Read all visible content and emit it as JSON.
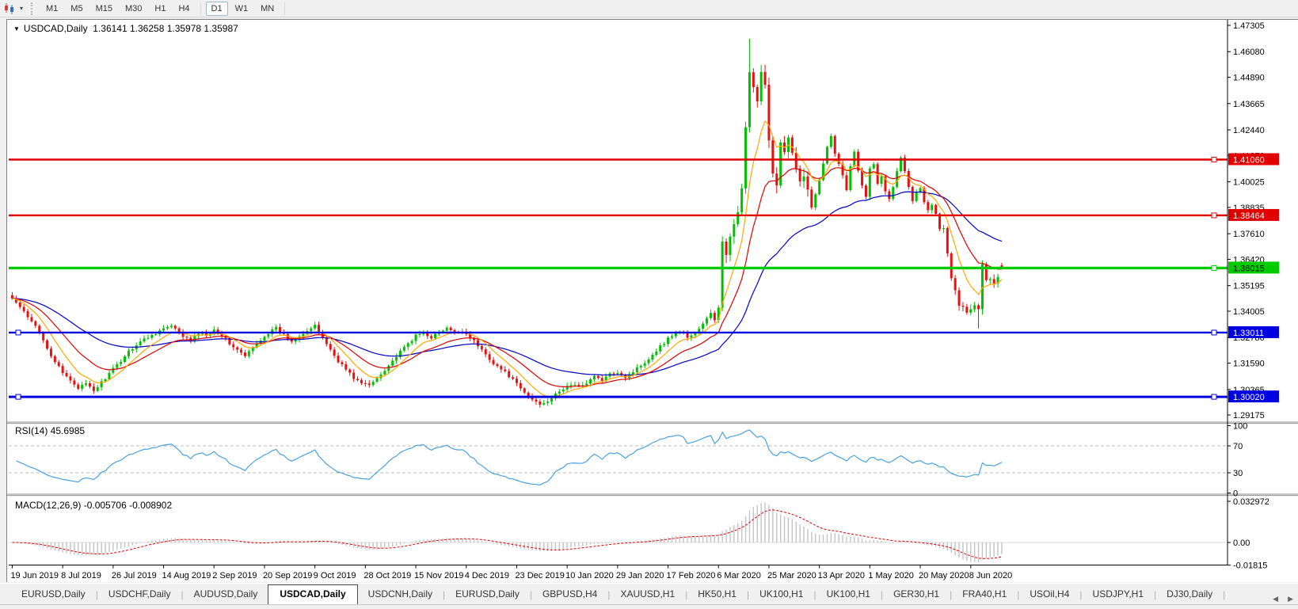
{
  "toolbar": {
    "icon": "candlestick-chart-icon",
    "timeframes": [
      "M1",
      "M5",
      "M15",
      "M30",
      "H1",
      "H4",
      "D1",
      "W1",
      "MN"
    ],
    "active_timeframe": "D1"
  },
  "chart": {
    "title": "USDCAD,Daily",
    "ohlc_display": "1.36141 1.36258 1.35978 1.35987",
    "price_axis": {
      "ticks": [
        "1.47305",
        "1.46080",
        "1.44890",
        "1.43665",
        "1.42440",
        "1.41250",
        "1.40025",
        "1.38835",
        "1.37610",
        "1.36420",
        "1.35195",
        "1.34005",
        "1.32780",
        "1.31590",
        "1.30365",
        "1.29175"
      ]
    },
    "levels": [
      {
        "price": 1.4106,
        "label": "1.41060",
        "color": "#E00000",
        "text_color": "#FFFFFF",
        "width": 2.4,
        "handles": [
          "right"
        ]
      },
      {
        "price": 1.38464,
        "label": "1.38464",
        "color": "#E00000",
        "text_color": "#FFFFFF",
        "width": 2.4,
        "handles": [
          "right"
        ]
      },
      {
        "price": 1.36015,
        "label": "1.36015",
        "color": "#00CC00",
        "text_color": "#000000",
        "width": 3.4,
        "handles": [
          "right"
        ]
      },
      {
        "price": 1.33011,
        "label": "1.33011",
        "color": "#0000E0",
        "text_color": "#FFFFFF",
        "width": 2.4,
        "handles": [
          "left",
          "right"
        ]
      },
      {
        "price": 1.3002,
        "label": "1.30020",
        "color": "#0000E0",
        "text_color": "#FFFFFF",
        "width": 3.0,
        "handles": [
          "left",
          "right"
        ]
      }
    ],
    "rsi": {
      "display": "RSI(14) 45.6985",
      "axis": [
        {
          "label": "100",
          "value": 100
        },
        {
          "label": "70",
          "value": 70
        },
        {
          "label": "30",
          "value": 30
        },
        {
          "label": "0",
          "value": 0
        }
      ],
      "dashed_levels": [
        70,
        30
      ]
    },
    "macd": {
      "display": "MACD(12,26,9) -0.005706 -0.008902",
      "axis": [
        {
          "label": "0.032972",
          "value": 0.032972
        },
        {
          "label": "0.00",
          "value": 0
        },
        {
          "label": "-0.01815",
          "value": -0.01815
        }
      ]
    },
    "date_axis": [
      "19 Jun 2019",
      "8 Jul 2019",
      "26 Jul 2019",
      "14 Aug 2019",
      "2 Sep 2019",
      "20 Sep 2019",
      "9 Oct 2019",
      "28 Oct 2019",
      "15 Nov 2019",
      "4 Dec 2019",
      "23 Dec 2019",
      "10 Jan 2020",
      "29 Jan 2020",
      "17 Feb 2020",
      "6 Mar 2020",
      "25 Mar 2020",
      "13 Apr 2020",
      "1 May 2020",
      "20 May 2020",
      "8 Jun 2020"
    ]
  },
  "chart_data": {
    "type": "candlestick",
    "symbol": "USDCAD",
    "timeframe": "Daily",
    "n_bars": 256,
    "last_bar": {
      "open": 1.36141,
      "high": 1.36258,
      "low": 1.35978,
      "close": 1.35987
    },
    "price_range_shown": [
      1.29175,
      1.47305
    ],
    "close_anchors": [
      [
        0,
        1.346
      ],
      [
        2,
        1.342
      ],
      [
        4,
        1.337
      ],
      [
        6,
        1.333
      ],
      [
        8,
        1.327
      ],
      [
        10,
        1.3195
      ],
      [
        13,
        1.311
      ],
      [
        15,
        1.308
      ],
      [
        17,
        1.3045
      ],
      [
        19,
        1.306
      ],
      [
        21,
        1.303
      ],
      [
        23,
        1.307
      ],
      [
        26,
        1.313
      ],
      [
        28,
        1.317
      ],
      [
        30,
        1.3215
      ],
      [
        33,
        1.326
      ],
      [
        36,
        1.329
      ],
      [
        39,
        1.332
      ],
      [
        41,
        1.333
      ],
      [
        44,
        1.3285
      ],
      [
        46,
        1.326
      ],
      [
        48,
        1.33
      ],
      [
        50,
        1.329
      ],
      [
        52,
        1.3315
      ],
      [
        54,
        1.329
      ],
      [
        56,
        1.325
      ],
      [
        58,
        1.322
      ],
      [
        60,
        1.319
      ],
      [
        62,
        1.323
      ],
      [
        64,
        1.327
      ],
      [
        66,
        1.33
      ],
      [
        68,
        1.332
      ],
      [
        70,
        1.329
      ],
      [
        72,
        1.326
      ],
      [
        74,
        1.329
      ],
      [
        76,
        1.331
      ],
      [
        78,
        1.333
      ],
      [
        80,
        1.328
      ],
      [
        82,
        1.322
      ],
      [
        84,
        1.317
      ],
      [
        86,
        1.313
      ],
      [
        88,
        1.309
      ],
      [
        90,
        1.3065
      ],
      [
        92,
        1.3055
      ],
      [
        94,
        1.309
      ],
      [
        96,
        1.313
      ],
      [
        98,
        1.317
      ],
      [
        100,
        1.321
      ],
      [
        102,
        1.325
      ],
      [
        104,
        1.3285
      ],
      [
        106,
        1.33
      ],
      [
        108,
        1.328
      ],
      [
        110,
        1.33
      ],
      [
        112,
        1.332
      ],
      [
        114,
        1.33
      ],
      [
        116,
        1.331
      ],
      [
        118,
        1.328
      ],
      [
        120,
        1.324
      ],
      [
        122,
        1.32
      ],
      [
        124,
        1.316
      ],
      [
        126,
        1.313
      ],
      [
        128,
        1.31
      ],
      [
        130,
        1.306
      ],
      [
        132,
        1.302
      ],
      [
        134,
        1.299
      ],
      [
        136,
        1.297
      ],
      [
        138,
        1.2985
      ],
      [
        140,
        1.301
      ],
      [
        142,
        1.304
      ],
      [
        144,
        1.306
      ],
      [
        146,
        1.305
      ],
      [
        148,
        1.307
      ],
      [
        150,
        1.3095
      ],
      [
        152,
        1.308
      ],
      [
        154,
        1.3105
      ],
      [
        156,
        1.312
      ],
      [
        158,
        1.3095
      ],
      [
        160,
        1.312
      ],
      [
        162,
        1.315
      ],
      [
        164,
        1.318
      ],
      [
        166,
        1.322
      ],
      [
        168,
        1.3255
      ],
      [
        170,
        1.329
      ],
      [
        172,
        1.331
      ],
      [
        174,
        1.328
      ],
      [
        176,
        1.33
      ],
      [
        178,
        1.334
      ],
      [
        180,
        1.339
      ],
      [
        181,
        1.336
      ],
      [
        182,
        1.342
      ],
      [
        183,
        1.372
      ],
      [
        184,
        1.365
      ],
      [
        185,
        1.373
      ],
      [
        186,
        1.381
      ],
      [
        187,
        1.388
      ],
      [
        188,
        1.399
      ],
      [
        189,
        1.424
      ],
      [
        190,
        1.451
      ],
      [
        191,
        1.444
      ],
      [
        192,
        1.436
      ],
      [
        193,
        1.45
      ],
      [
        194,
        1.444
      ],
      [
        195,
        1.418
      ],
      [
        196,
        1.406
      ],
      [
        197,
        1.399
      ],
      [
        198,
        1.419
      ],
      [
        199,
        1.416
      ],
      [
        200,
        1.421
      ],
      [
        201,
        1.413
      ],
      [
        202,
        1.406
      ],
      [
        203,
        1.399
      ],
      [
        204,
        1.402
      ],
      [
        205,
        1.396
      ],
      [
        206,
        1.389
      ],
      [
        207,
        1.394
      ],
      [
        208,
        1.401
      ],
      [
        209,
        1.409
      ],
      [
        210,
        1.417
      ],
      [
        211,
        1.422
      ],
      [
        212,
        1.414
      ],
      [
        213,
        1.409
      ],
      [
        214,
        1.403
      ],
      [
        215,
        1.397
      ],
      [
        216,
        1.408
      ],
      [
        217,
        1.414
      ],
      [
        218,
        1.406
      ],
      [
        219,
        1.399
      ],
      [
        220,
        1.394
      ],
      [
        221,
        1.407
      ],
      [
        222,
        1.408
      ],
      [
        223,
        1.399
      ],
      [
        224,
        1.403
      ],
      [
        225,
        1.396
      ],
      [
        226,
        1.392
      ],
      [
        227,
        1.398
      ],
      [
        228,
        1.405
      ],
      [
        229,
        1.411
      ],
      [
        230,
        1.405
      ],
      [
        231,
        1.398
      ],
      [
        232,
        1.392
      ],
      [
        233,
        1.396
      ],
      [
        234,
        1.398
      ],
      [
        235,
        1.391
      ],
      [
        236,
        1.387
      ],
      [
        237,
        1.39
      ],
      [
        238,
        1.385
      ],
      [
        239,
        1.378
      ],
      [
        240,
        1.379
      ],
      [
        241,
        1.368
      ],
      [
        242,
        1.356
      ],
      [
        243,
        1.35
      ],
      [
        244,
        1.342
      ],
      [
        245,
        1.343
      ],
      [
        246,
        1.339
      ],
      [
        247,
        1.34
      ],
      [
        248,
        1.343
      ],
      [
        249,
        1.341
      ],
      [
        250,
        1.362
      ],
      [
        251,
        1.3545
      ],
      [
        252,
        1.355
      ],
      [
        253,
        1.353
      ],
      [
        254,
        1.356
      ],
      [
        255,
        1.35987
      ]
    ],
    "extremes": {
      "190": {
        "high": 1.4668
      },
      "249": {
        "low": 1.332
      },
      "136": {
        "low": 1.2952
      },
      "21": {
        "low": 1.3016
      }
    },
    "indicators": {
      "rsi": {
        "period": 14,
        "current": 45.6985
      },
      "macd": {
        "fast": 12,
        "slow": 26,
        "signal": 9,
        "current": [
          -0.005706,
          -0.008902
        ]
      },
      "moving_averages": [
        {
          "period": 8,
          "color": "#FFA800"
        },
        {
          "period": 18,
          "color": "#E00000"
        },
        {
          "period": 45,
          "color": "#0000C8"
        }
      ]
    },
    "colors": {
      "bull": "#00C000",
      "bear": "#E81010",
      "rsi_line": "#4AA1E0",
      "rsi_dash": "#BBBBBB",
      "macd_hist": "#C4C4C4",
      "macd_signal": "#E00000",
      "axis_line": "#000000",
      "separator": "#909090"
    }
  },
  "tabs": {
    "items": [
      "EURUSD,Daily",
      "USDCHF,Daily",
      "AUDUSD,Daily",
      "USDCAD,Daily",
      "USDCNH,Daily",
      "EURUSD,Daily",
      "GBPUSD,H4",
      "XAUUSD,H1",
      "HK50,H1",
      "UK100,H1",
      "UK100,H1",
      "GER30,H1",
      "FRA40,H1",
      "USOil,H4",
      "USDJPY,H1",
      "DJ30,Daily"
    ],
    "active_index": 3,
    "scroll_left_icon": "chevron-left-icon",
    "scroll_right_icon": "chevron-right-icon"
  }
}
